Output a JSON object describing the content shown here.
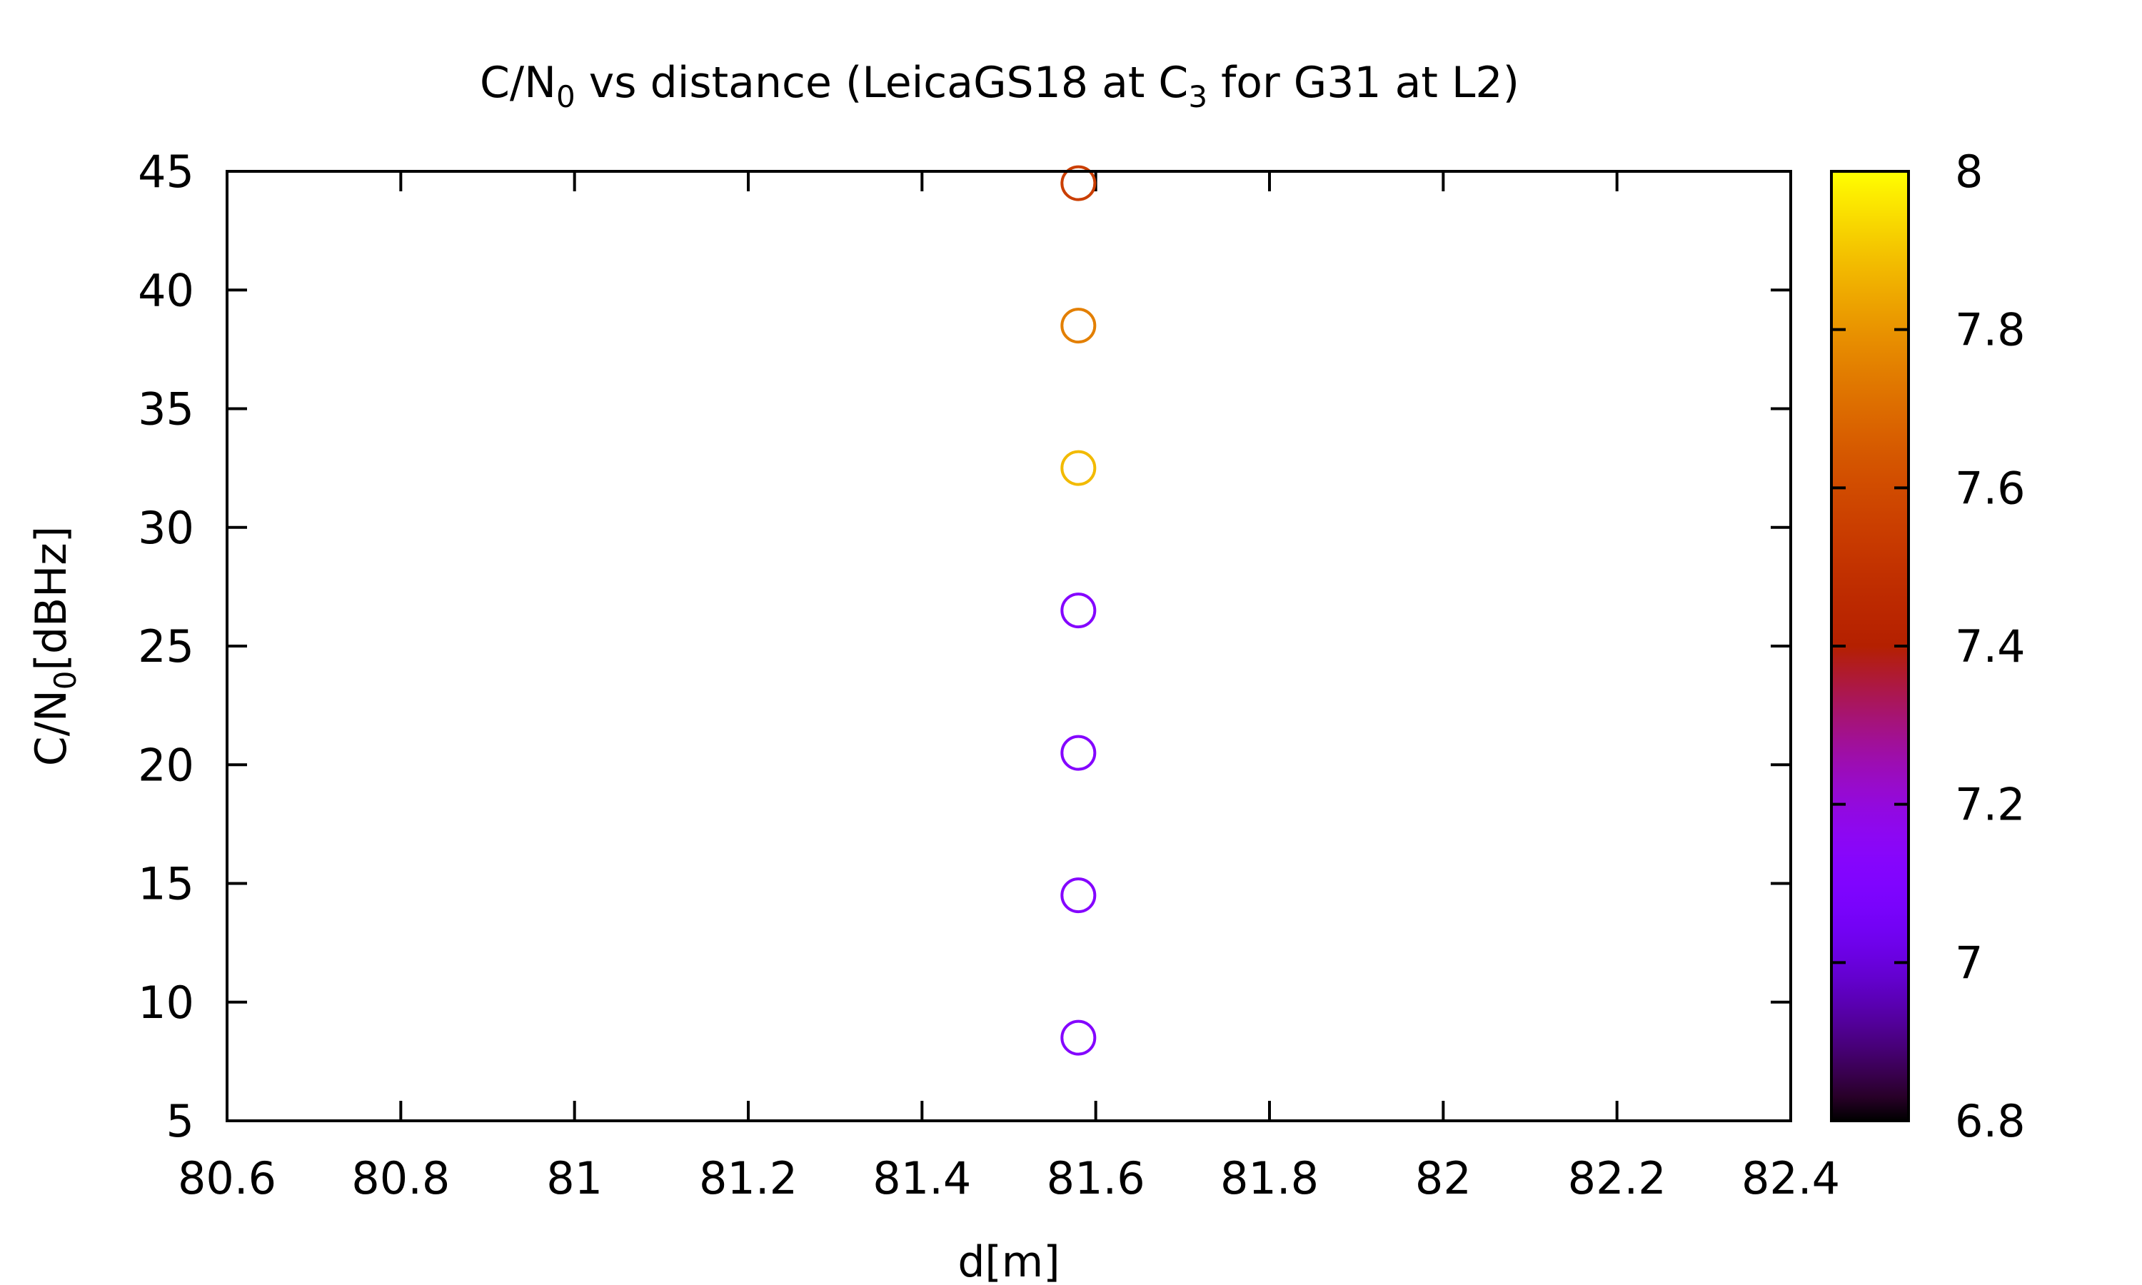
{
  "chart_data": {
    "type": "scatter",
    "title": {
      "prefix": "C/N",
      "sub": "0",
      "mid": " vs distance (LeicaGS18 at C",
      "sub2": "3",
      "suffix": " for G31 at L2)"
    },
    "xlabel": "d[m]",
    "ylabel": {
      "prefix": "C/N",
      "sub": "0",
      "suffix": "[dBHz]"
    },
    "xlim": [
      80.6,
      82.4
    ],
    "ylim": [
      5,
      45
    ],
    "x_ticks": [
      "80.6",
      "80.8",
      "81",
      "81.2",
      "81.4",
      "81.6",
      "81.8",
      "82",
      "82.2",
      "82.4"
    ],
    "y_ticks": [
      "5",
      "10",
      "15",
      "20",
      "25",
      "30",
      "35",
      "40",
      "45"
    ],
    "colorbar": {
      "range": [
        6.8,
        8
      ],
      "ticks": [
        "6.8",
        "7",
        "7.2",
        "7.4",
        "7.6",
        "7.8",
        "8"
      ],
      "palette": "gnuplot-default"
    },
    "marker": "open-circle",
    "points": [
      {
        "x": 81.58,
        "y": 8.5,
        "c": 7.12
      },
      {
        "x": 81.58,
        "y": 14.5,
        "c": 7.12
      },
      {
        "x": 81.58,
        "y": 20.5,
        "c": 7.12
      },
      {
        "x": 81.58,
        "y": 26.5,
        "c": 7.12
      },
      {
        "x": 81.58,
        "y": 32.5,
        "c": 7.88
      },
      {
        "x": 81.58,
        "y": 38.5,
        "c": 7.75
      },
      {
        "x": 81.58,
        "y": 44.5,
        "c": 7.55
      }
    ],
    "grid": false,
    "legend": "none"
  }
}
